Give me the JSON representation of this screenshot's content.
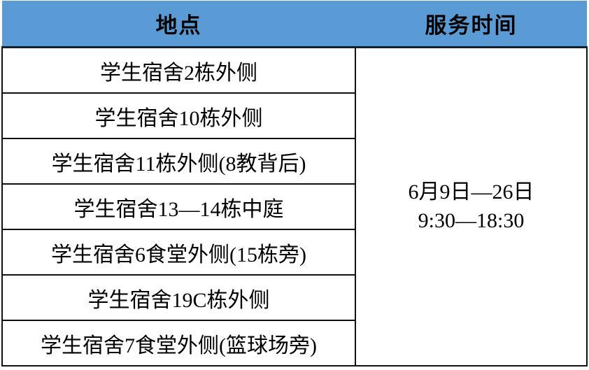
{
  "table": {
    "header": {
      "location_label": "地点",
      "service_time_label": "服务时间"
    },
    "locations": [
      "学生宿舍2栋外侧",
      "学生宿舍10栋外侧",
      "学生宿舍11栋外侧(8教背后)",
      "学生宿舍13—14栋中庭",
      "学生宿舍6食堂外侧(15栋旁)",
      "学生宿舍19C栋外侧",
      "学生宿舍7食堂外侧(篮球场旁)"
    ],
    "service_time": {
      "dates": "6月9日—26日",
      "hours": "9:30—18:30"
    },
    "colors": {
      "header_bg": "#5b9bd5",
      "border": "#111111",
      "text": "#000000"
    }
  }
}
